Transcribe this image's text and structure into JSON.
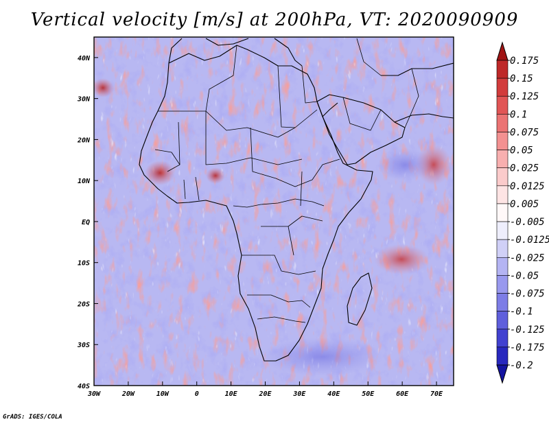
{
  "title": "Vertical velocity [m/s] at 200hPa, VT: 2020090909",
  "credit": "GrADS: IGES/COLA",
  "map": {
    "lon_range": [
      -30,
      75
    ],
    "lat_range": [
      -40,
      45
    ],
    "lat_ticks": [
      {
        "value": 40,
        "label": "40N"
      },
      {
        "value": 30,
        "label": "30N"
      },
      {
        "value": 20,
        "label": "20N"
      },
      {
        "value": 10,
        "label": "10N"
      },
      {
        "value": 0,
        "label": "EQ"
      },
      {
        "value": -10,
        "label": "10S"
      },
      {
        "value": -20,
        "label": "20S"
      },
      {
        "value": -30,
        "label": "30S"
      },
      {
        "value": -40,
        "label": "40S"
      }
    ],
    "lon_ticks": [
      {
        "value": -30,
        "label": "30W"
      },
      {
        "value": -20,
        "label": "20W"
      },
      {
        "value": -10,
        "label": "10W"
      },
      {
        "value": 0,
        "label": "0"
      },
      {
        "value": 10,
        "label": "10E"
      },
      {
        "value": 20,
        "label": "20E"
      },
      {
        "value": 30,
        "label": "30E"
      },
      {
        "value": 40,
        "label": "40E"
      },
      {
        "value": 50,
        "label": "50E"
      },
      {
        "value": 60,
        "label": "60E"
      },
      {
        "value": 70,
        "label": "70E"
      }
    ]
  },
  "colorbar": {
    "levels": [
      {
        "label": "0.175",
        "color": "#b41e1e"
      },
      {
        "label": "0.15",
        "color": "#c83232"
      },
      {
        "label": "0.125",
        "color": "#dc4646"
      },
      {
        "label": "0.1",
        "color": "#e66464"
      },
      {
        "label": "0.075",
        "color": "#f08282"
      },
      {
        "label": "0.05",
        "color": "#f5a0a0"
      },
      {
        "label": "0.025",
        "color": "#fabebe"
      },
      {
        "label": "0.0125",
        "color": "#fcd8d8"
      },
      {
        "label": "0.005",
        "color": "#fff0f0"
      },
      {
        "label": "-0.005",
        "color": "#ffffff"
      },
      {
        "label": "-0.0125",
        "color": "#dcdcf8"
      },
      {
        "label": "-0.025",
        "color": "#c3c3f5"
      },
      {
        "label": "-0.05",
        "color": "#a5a5f0"
      },
      {
        "label": "-0.075",
        "color": "#8c8ceb"
      },
      {
        "label": "-0.1",
        "color": "#6e6ee1"
      },
      {
        "label": "-0.125",
        "color": "#5050d7"
      },
      {
        "label": "-0.175",
        "color": "#3232c8"
      },
      {
        "label": "-0.2",
        "color": "#1e1eb4"
      }
    ],
    "top_tip_color": "#a01414",
    "bottom_tip_color": "#1414a0"
  }
}
